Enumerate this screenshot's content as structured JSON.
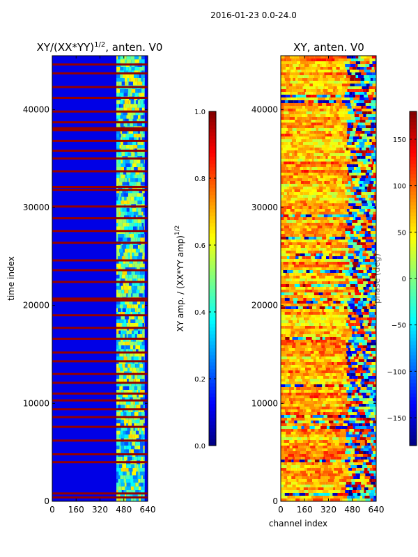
{
  "figure": {
    "suptitle": "2016-01-23 0.0-24.0"
  },
  "chart_data": [
    {
      "type": "heatmap",
      "title_base": "XY/(XX*YY)",
      "title_exp": "1/2",
      "title_tail": ", anten. V0",
      "xlabel": "",
      "ylabel": "time index",
      "xlim": [
        0,
        640
      ],
      "ylim": [
        0,
        45500
      ],
      "xticks": [
        0,
        160,
        320,
        480,
        640
      ],
      "yticks": [
        0,
        10000,
        20000,
        30000,
        40000
      ],
      "colormap": "jet",
      "colorbar": {
        "label_base": "XY amp. / (XX*YY amp)",
        "label_exp": "1/2",
        "range": [
          0.0,
          1.0
        ],
        "ticks": [
          0.0,
          0.2,
          0.4,
          0.6,
          0.8,
          1.0
        ],
        "tick_labels": [
          "0.0",
          "0.2",
          "0.4",
          "0.6",
          "0.8",
          "1.0"
        ]
      },
      "saturated_rows": [
        400,
        800,
        4000,
        4800,
        6200,
        7600,
        8600,
        9400,
        10300,
        11000,
        12100,
        13000,
        14300,
        15200,
        16600,
        17700,
        19000,
        20500,
        20700,
        22400,
        23600,
        24600,
        26400,
        27600,
        28900,
        30100,
        31800,
        32100,
        33700,
        35000,
        35800,
        36800,
        37900,
        38100,
        38700,
        39800,
        41200,
        42300,
        43700,
        44600
      ],
      "base_level": 0.1,
      "high_channel_band": [
        430,
        620
      ],
      "high_channel_level": 0.45
    },
    {
      "type": "heatmap",
      "title": "XY, anten. V0",
      "xlabel": "channel index",
      "ylabel": "",
      "xlim": [
        0,
        640
      ],
      "ylim": [
        0,
        45500
      ],
      "xticks": [
        0,
        160,
        320,
        480,
        640
      ],
      "yticks": [
        0,
        10000,
        20000,
        30000,
        40000
      ],
      "colormap": "jet",
      "colorbar": {
        "label": "phase (deg)",
        "range": [
          -180,
          180
        ],
        "ticks": [
          -150,
          -100,
          -50,
          0,
          50,
          100,
          150
        ],
        "tick_labels": [
          "−150",
          "−100",
          "−50",
          "0",
          "50",
          "100",
          "150"
        ]
      },
      "dominant_phase_deg": 75,
      "noisy_channel_band": [
        430,
        640
      ]
    }
  ]
}
